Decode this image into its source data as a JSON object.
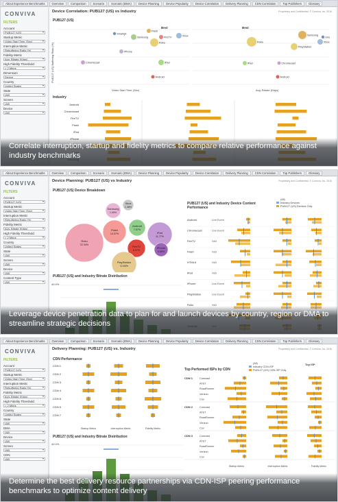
{
  "panels": [
    {
      "tabs": [
        "About Experience Benchmarks",
        "Overview",
        "Comparison",
        "Scenario",
        "Scenario (DMA)",
        "Device Planning",
        "Device Popularity",
        "Device Correlation",
        "Delivery Planning",
        "CDN Correlation",
        "Top Publishers",
        "Glossary"
      ],
      "logo": "CONVIVA",
      "filters_title": "FILTERS",
      "filters": [
        {
          "label": "Account",
          "value": "PUB127 (US)"
        },
        {
          "label": "Startup Metric",
          "value": "Video Start Time (Sec)"
        },
        {
          "label": "Interruption Metric",
          "value": "Rebuffering Ratio (%)"
        },
        {
          "label": "Fidelity Metric",
          "value": "Avg. Bitrate (Kbps)"
        },
        {
          "label": "High Fidelity Threshold",
          "value": "> 2 Mbps"
        },
        {
          "label": "Dimension",
          "value": "Device"
        },
        {
          "label": "Country",
          "value": "United States"
        },
        {
          "label": "State",
          "value": "(All)"
        },
        {
          "label": "Screen",
          "value": "(All)"
        },
        {
          "label": "Device",
          "value": "(All)"
        }
      ],
      "title": "Device Correlation: PUB127 (US) vs Industry",
      "proprietary": "Proprietary and Confidential. © Conviva, Inc. 2016",
      "chart_title": "PUB127 (US)",
      "ylabel": "PUB127 (US) Buffering Ratio (%)",
      "xlabel_left": "Video Start Time (Sec)",
      "xlabel_right": "Avg. Bitrate (Kbps)",
      "best_label": "Best",
      "bubbles_left": [
        {
          "label": "Smartgh"
        },
        {
          "label": "Flash"
        },
        {
          "label": "Samsung"
        },
        {
          "label": "FireTV"
        },
        {
          "label": "Roku"
        },
        {
          "label": "Xbox"
        },
        {
          "label": "iPhone"
        },
        {
          "label": "Chromecast"
        },
        {
          "label": "iPad"
        },
        {
          "label": "Android"
        }
      ],
      "bubbles_right": [
        {
          "label": "Samsung"
        },
        {
          "label": "Smartgh"
        },
        {
          "label": "Xbox"
        },
        {
          "label": "PlayStation"
        },
        {
          "label": "Roku"
        },
        {
          "label": "iPad"
        },
        {
          "label": "Chromecast"
        },
        {
          "label": "Android"
        }
      ],
      "industry_title": "Industry",
      "industry_rows": [
        "Android",
        "Chromecast",
        "FireTV",
        "Flash",
        "iPad",
        "iPhone",
        "PlayStation",
        "Roku",
        "Samsung"
      ],
      "caption": "Correlate interruption, startup and fidelity metrics to compare relative performance against industry benchmarks"
    },
    {
      "tabs": [
        "About Experience Benchmarks",
        "Overview",
        "Comparison",
        "Scenario",
        "Scenario (DMA)",
        "Device Planning",
        "Device Popularity",
        "Device Correlation",
        "Delivery Planning",
        "CDN Correlation",
        "Top Publishers",
        "Glossary"
      ],
      "logo": "CONVIVA",
      "filters_title": "FILTERS",
      "filters": [
        {
          "label": "Account",
          "value": "PUB127 (US)"
        },
        {
          "label": "Startup Metric",
          "value": "Video Start Time (Sec)"
        },
        {
          "label": "Interruption Metric",
          "value": "Rebuffering Ratio (%)"
        },
        {
          "label": "Fidelity Metric",
          "value": "Avg. Bitrate (Kbps)"
        },
        {
          "label": "High Fidelity Threshold",
          "value": "> 2 Mbps"
        },
        {
          "label": "Country",
          "value": "United States"
        },
        {
          "label": "State",
          "value": "(All)"
        },
        {
          "label": "Screen",
          "value": "(All)"
        },
        {
          "label": "Device",
          "value": "(All)"
        },
        {
          "label": "Content Type",
          "value": "(All)"
        }
      ],
      "title": "Device Planning: PUB127 (US) vs Industry",
      "proprietary": "Proprietary and Confidential. © Conviva, Inc. 2016",
      "breakdown_title": "PUB127 (US) Device Breakdown",
      "bubbles": [
        {
          "label": "Roku",
          "pct": "22.34%",
          "color": "#f0a3b3"
        },
        {
          "label": "Samsung",
          "pct": "1.00%",
          "color": "#e8b4d6"
        },
        {
          "label": "Xbox",
          "pct": "1.38%",
          "color": "#c9c9c9"
        },
        {
          "label": "Flash",
          "pct": "14.07%",
          "color": "#f49b97"
        },
        {
          "label": "Android",
          "pct": "7.67%",
          "color": "#8fcf8a"
        },
        {
          "label": "iPad",
          "pct": "11.77%",
          "color": "#c49ad6"
        },
        {
          "label": "FireTV",
          "pct": "8.07%",
          "color": "#e0453c"
        },
        {
          "label": "iPhone",
          "pct": "6.68%",
          "color": "#9b62b8"
        },
        {
          "label": "PlayStation",
          "pct": "12.60%",
          "color": "#e6c98f"
        }
      ],
      "bitrate_title": "PUB127 (US) and Industry Bitrate Distribution",
      "bitrate_pct": "40.0%",
      "device_perf_title": "PUB127 (US) and Industry Device Content Performance",
      "legend": [
        "(All)",
        "Industry Devices",
        "PUB127 (US) Devices Only"
      ],
      "perf_rows": [
        {
          "device": "Android",
          "type": "Live Event"
        },
        {
          "device": "Chromecast",
          "type": "Live Event"
        },
        {
          "device": "FireTV",
          "type": "VoD"
        },
        {
          "device": "Flash",
          "type": "VoD"
        },
        {
          "device": "HTML5",
          "type": "VoD"
        },
        {
          "device": "iPad",
          "type": "VoD"
        },
        {
          "device": "iPhone",
          "type": "Live Event"
        },
        {
          "device": "PlayStation",
          "type": "Live Event"
        },
        {
          "device": "Roku",
          "type": "VoD"
        },
        {
          "device": "Samsung",
          "type": "VoD"
        },
        {
          "device": "Smartgh",
          "type": "VoD"
        }
      ],
      "caption": "Leverage device penetration data to plan for and launch devices by country, region or DMA to streamline strategic decisions"
    },
    {
      "tabs": [
        "About Experience Benchmarks",
        "Overview",
        "Comparison",
        "Scenario",
        "Scenario (DMA)",
        "Device Planning",
        "Device Popularity",
        "Device Correlation",
        "Delivery Planning",
        "CDN Correlation",
        "Top Publishers",
        "Glossary"
      ],
      "logo": "CONVIVA",
      "filters_title": "FILTERS",
      "filters": [
        {
          "label": "Account",
          "value": "PUB127 (US)"
        },
        {
          "label": "Startup Metric",
          "value": "Video Start Time (Sec)"
        },
        {
          "label": "Interruption Metric",
          "value": "Rebuffering Ratio (%)"
        },
        {
          "label": "Fidelity Metric",
          "value": "Avg. Bitrate (Kbps)"
        },
        {
          "label": "High Fidelity Threshold",
          "value": "> 2 Mbps"
        },
        {
          "label": "Country",
          "value": "United States"
        },
        {
          "label": "State",
          "value": "(All)"
        },
        {
          "label": "DMA",
          "value": "(All)"
        },
        {
          "label": "Device",
          "value": "(All)"
        },
        {
          "label": "Screen",
          "value": "(All)"
        },
        {
          "label": "CDN",
          "value": "(All)"
        }
      ],
      "title": "Delivery Planning: PUB127 (US) vs. Industry",
      "proprietary": "Proprietary and Confidential. © Conviva, Inc. 2016",
      "cdn_title": "CDN Performance",
      "cdn_rows": [
        "CDN 1",
        "CDN 2",
        "CDN 3",
        "CDN 4",
        "CDN 5",
        "CDN 6",
        "CDN 7"
      ],
      "cdn_axes": [
        "Startup Metric",
        "Interruption Metric",
        "Fidelity Metric"
      ],
      "bitrate_title": "PUB127 (US) and Industry Bitrate Distribution",
      "bitrate_pct": "40.0%",
      "isp_title": "Top Performed ISPs by CDN",
      "legend": [
        "(All)",
        "Industry CDN-ISP",
        "PUB127 (US) CDN-ISP Only"
      ],
      "top_isp_label": "Top ISP",
      "isp_groups": [
        {
          "cdn": "CDN 1",
          "isps": [
            "Comcast",
            "AT&T",
            "RoadRunner",
            "Verizon",
            "Cox"
          ]
        },
        {
          "cdn": "CDN 2",
          "isps": [
            "Comcast",
            "AT&T",
            "RoadRunner",
            "Verizon",
            "Cox"
          ]
        },
        {
          "cdn": "CDN 3",
          "isps": [
            "Comcast",
            "AT&T",
            "RoadRunner",
            "Verizon",
            "Cox"
          ]
        }
      ],
      "isp_axes": [
        "Startup Metric",
        "Interruption Metric",
        "Fidelity Metric"
      ],
      "caption": "Determine the best delivery resource partnerships via CDN-ISP peering performance benchmarks to optimize content delivery"
    }
  ]
}
